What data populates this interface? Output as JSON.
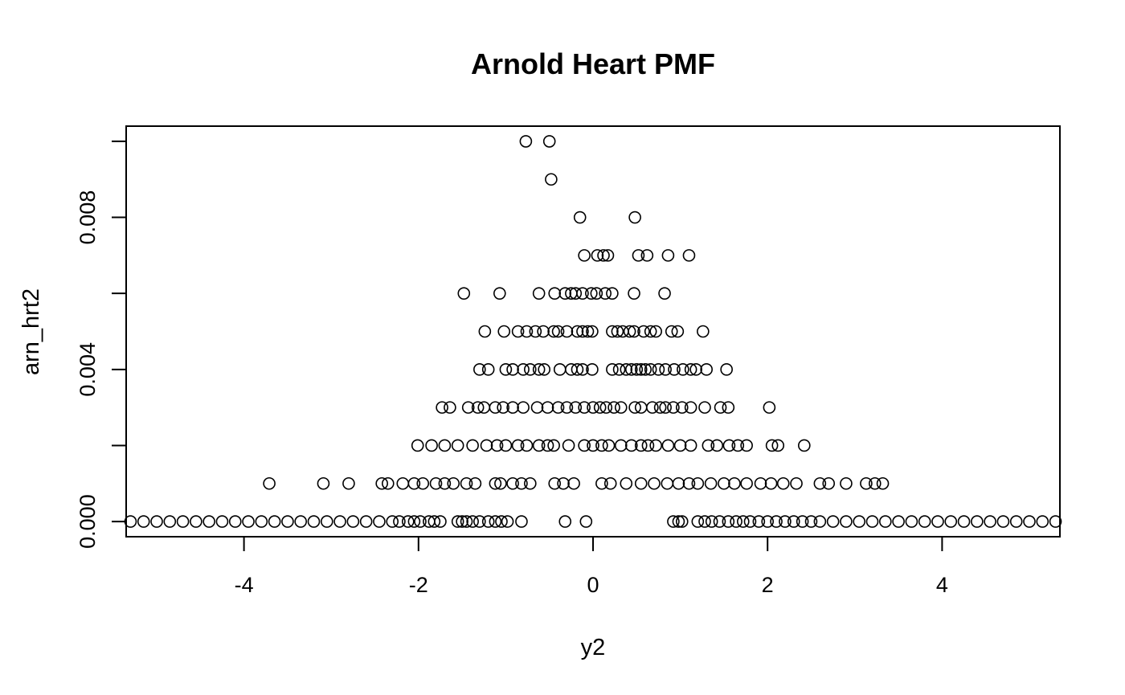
{
  "chart_data": {
    "type": "scatter",
    "title": "Arnold Heart PMF",
    "xlabel": "y2",
    "ylabel": "arn_hrt2",
    "xlim": [
      -5.35,
      5.35
    ],
    "ylim": [
      -0.0004,
      0.0104
    ],
    "xticks": [
      -4,
      -2,
      0,
      2,
      4
    ],
    "xtick_labels": [
      "-4",
      "-2",
      "0",
      "2",
      "4"
    ],
    "yticks": [
      0.0,
      0.002,
      0.004,
      0.006,
      0.008,
      0.01
    ],
    "ytick_labels": [
      "0.000",
      "",
      "0.004",
      "",
      "0.008",
      ""
    ],
    "grid": false,
    "legend": "none",
    "marker": "open-circle",
    "series": [
      {
        "points_by_level": [
          {
            "y": 0.01,
            "x": [
              -0.77,
              -0.5
            ]
          },
          {
            "y": 0.009,
            "x": [
              -0.48
            ]
          },
          {
            "y": 0.008,
            "x": [
              -0.15,
              0.48
            ]
          },
          {
            "y": 0.007,
            "x": [
              -0.1,
              0.05,
              0.12,
              0.17,
              0.52,
              0.62,
              0.86,
              1.1
            ]
          },
          {
            "y": 0.006,
            "x": [
              -1.48,
              -1.07,
              -0.62,
              -0.44,
              -0.32,
              -0.25,
              -0.2,
              -0.12,
              -0.02,
              0.04,
              0.14,
              0.22,
              0.47,
              0.82
            ]
          },
          {
            "y": 0.005,
            "x": [
              -1.24,
              -1.02,
              -0.86,
              -0.76,
              -0.66,
              -0.57,
              -0.45,
              -0.4,
              -0.3,
              -0.18,
              -0.12,
              -0.06,
              -0.01,
              0.22,
              0.28,
              0.34,
              0.42,
              0.47,
              0.58,
              0.66,
              0.72,
              0.9,
              0.97,
              1.26
            ]
          },
          {
            "y": 0.004,
            "x": [
              -1.3,
              -1.2,
              -1.0,
              -0.92,
              -0.8,
              -0.72,
              -0.62,
              -0.56,
              -0.38,
              -0.25,
              -0.18,
              -0.12,
              -0.01,
              0.22,
              0.3,
              0.38,
              0.44,
              0.5,
              0.55,
              0.6,
              0.66,
              0.75,
              0.83,
              0.93,
              1.03,
              1.12,
              1.18,
              1.3,
              1.53
            ]
          },
          {
            "y": 0.003,
            "x": [
              -1.73,
              -1.64,
              -1.43,
              -1.32,
              -1.25,
              -1.12,
              -1.03,
              -0.92,
              -0.8,
              -0.64,
              -0.52,
              -0.4,
              -0.3,
              -0.2,
              -0.1,
              0.0,
              0.08,
              0.15,
              0.24,
              0.32,
              0.48,
              0.55,
              0.68,
              0.77,
              0.83,
              0.92,
              1.02,
              1.12,
              1.28,
              1.46,
              1.55,
              2.02
            ]
          },
          {
            "y": 0.002,
            "x": [
              -2.01,
              -1.85,
              -1.7,
              -1.55,
              -1.38,
              -1.22,
              -1.1,
              -1.0,
              -0.86,
              -0.76,
              -0.62,
              -0.52,
              -0.45,
              -0.28,
              -0.1,
              0.0,
              0.1,
              0.18,
              0.32,
              0.44,
              0.55,
              0.63,
              0.72,
              0.86,
              1.0,
              1.12,
              1.32,
              1.42,
              1.56,
              1.66,
              1.76,
              2.05,
              2.12,
              2.42
            ]
          },
          {
            "y": 0.001,
            "x": [
              -3.71,
              -3.09,
              -2.8,
              -2.42,
              -2.35,
              -2.18,
              -2.05,
              -1.95,
              -1.8,
              -1.7,
              -1.6,
              -1.45,
              -1.35,
              -1.12,
              -1.06,
              -0.92,
              -0.82,
              -0.72,
              -0.44,
              -0.34,
              -0.22,
              0.1,
              0.2,
              0.38,
              0.55,
              0.7,
              0.85,
              0.98,
              1.1,
              1.2,
              1.35,
              1.5,
              1.62,
              1.76,
              1.92,
              2.04,
              2.18,
              2.33,
              2.6,
              2.7,
              2.9,
              3.13,
              3.23,
              3.32
            ]
          },
          {
            "y": 0.0,
            "x": [
              -5.3,
              -5.15,
              -5.0,
              -4.85,
              -4.7,
              -4.55,
              -4.4,
              -4.25,
              -4.1,
              -3.95,
              -3.8,
              -3.65,
              -3.5,
              -3.35,
              -3.2,
              -3.05,
              -2.9,
              -2.75,
              -2.6,
              -2.45,
              -2.3,
              -2.22,
              -2.12,
              -2.05,
              -1.98,
              -1.88,
              -1.82,
              -1.75,
              -1.55,
              -1.5,
              -1.45,
              -1.38,
              -1.3,
              -1.2,
              -1.12,
              -1.05,
              -0.98,
              -0.82,
              -0.32,
              -0.08,
              0.92,
              0.98,
              1.02,
              1.2,
              1.28,
              1.36,
              1.45,
              1.55,
              1.64,
              1.72,
              1.8,
              1.9,
              2.0,
              2.1,
              2.2,
              2.3,
              2.4,
              2.5,
              2.6,
              2.75,
              2.9,
              3.05,
              3.2,
              3.35,
              3.5,
              3.65,
              3.8,
              3.95,
              4.1,
              4.25,
              4.4,
              4.55,
              4.7,
              4.85,
              5.0,
              5.15,
              5.3
            ]
          }
        ]
      }
    ]
  }
}
